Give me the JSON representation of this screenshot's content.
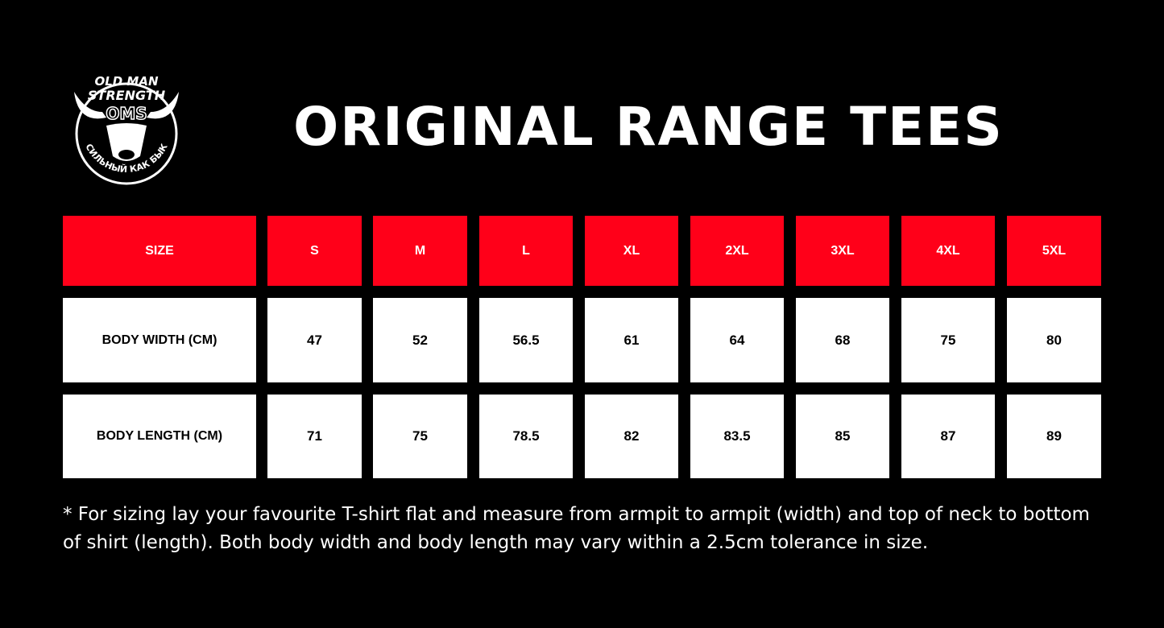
{
  "logo": {
    "text_top": "OLD MAN STRENGTH",
    "monogram": "OMS",
    "text_bottom": "СИЛЬНЫЙ КАК БЫК"
  },
  "title": "ORIGINAL RANGE TEES",
  "table": {
    "header": [
      "SIZE",
      "S",
      "M",
      "L",
      "XL",
      "2XL",
      "3XL",
      "4XL",
      "5XL"
    ],
    "rows": [
      [
        "BODY WIDTH (CM)",
        "47",
        "52",
        "56.5",
        "61",
        "64",
        "68",
        "75",
        "80"
      ],
      [
        "BODY LENGTH (CM)",
        "71",
        "75",
        "78.5",
        "82",
        "83.5",
        "85",
        "87",
        "89"
      ]
    ]
  },
  "note": "* For sizing lay your favourite T-shirt flat and measure from armpit to armpit (width) and top of neck to bottom of shirt (length). Both body width and body length may vary within a 2.5cm tolerance in size.",
  "colors": {
    "background": "#000000",
    "header": "#ff0019",
    "cell": "#ffffff"
  }
}
